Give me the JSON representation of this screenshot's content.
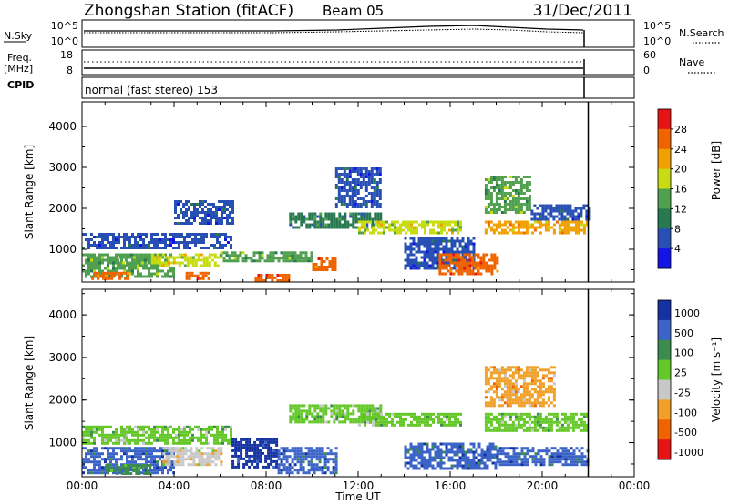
{
  "header": {
    "station": "Zhongshan Station (fitACF)",
    "beam": "Beam 05",
    "date": "31/Dec/2011"
  },
  "noise_panel": {
    "left_label": "N.Sky",
    "left_ticks": [
      "10^5",
      "10^0"
    ],
    "right_label": "N.Search",
    "right_ticks": [
      "10^5",
      "10^0"
    ]
  },
  "freq_panel": {
    "left_label_line1": "Freq.",
    "left_label_line2": "[MHz]",
    "left_ticks": [
      "18",
      "8"
    ],
    "right_label": "Nave",
    "right_ticks": [
      "60",
      "0"
    ]
  },
  "cpid": {
    "label": "CPID",
    "value": "normal (fast stereo) 153"
  },
  "x_axis": {
    "label": "Time UT",
    "tick_labels": [
      "00:00",
      "04:00",
      "08:00",
      "12:00",
      "16:00",
      "20:00",
      "00:00"
    ]
  },
  "colors": {
    "power_scale": [
      "#1414e6",
      "#2850b4",
      "#287850",
      "#50a050",
      "#c8dc14",
      "#f0a000",
      "#f06400",
      "#e61414"
    ],
    "velocity_scale": [
      "#1432a0",
      "#3c64c8",
      "#3c8c50",
      "#64c828",
      "#c8c8c8",
      "#f0a028",
      "#f06400",
      "#e61414"
    ]
  },
  "chart_data": [
    {
      "type": "heatmap",
      "panel": "power",
      "ylabel": "Slant Range [km]",
      "y_ticks": [
        "1000",
        "2000",
        "3000",
        "4000"
      ],
      "ylim": [
        200,
        4600
      ],
      "xlim_hours": [
        0,
        24
      ],
      "data_end_hour": 22,
      "colorbar": {
        "label": "Power [dB]",
        "tick_labels": [
          "4",
          "8",
          "12",
          "16",
          "20",
          "24",
          "28"
        ],
        "range": [
          0,
          30
        ]
      },
      "regions": [
        {
          "t0": 0.0,
          "t1": 6.5,
          "r0": 1000,
          "r1": 1400,
          "v": 6
        },
        {
          "t0": 0.0,
          "t1": 4.0,
          "r0": 300,
          "r1": 900,
          "v": 12
        },
        {
          "t0": 0.4,
          "t1": 2.0,
          "r0": 250,
          "r1": 450,
          "v": 26
        },
        {
          "t0": 1.5,
          "t1": 3.5,
          "r0": 600,
          "r1": 900,
          "v": 14
        },
        {
          "t0": 3.0,
          "t1": 6.0,
          "r0": 600,
          "r1": 900,
          "v": 17
        },
        {
          "t0": 4.5,
          "t1": 5.5,
          "r0": 300,
          "r1": 450,
          "v": 24
        },
        {
          "t0": 4.0,
          "t1": 6.5,
          "r0": 1600,
          "r1": 2200,
          "v": 6
        },
        {
          "t0": 6.0,
          "t1": 10.0,
          "r0": 700,
          "r1": 950,
          "v": 13
        },
        {
          "t0": 7.5,
          "t1": 9.0,
          "r0": 250,
          "r1": 400,
          "v": 25
        },
        {
          "t0": 10.0,
          "t1": 11.0,
          "r0": 500,
          "r1": 800,
          "v": 24
        },
        {
          "t0": 9.0,
          "t1": 13.0,
          "r0": 1500,
          "r1": 1900,
          "v": 11
        },
        {
          "t0": 12.0,
          "t1": 16.5,
          "r0": 1400,
          "r1": 1700,
          "v": 16
        },
        {
          "t0": 11.0,
          "t1": 13.0,
          "r0": 2000,
          "r1": 3000,
          "v": 4
        },
        {
          "t0": 14.0,
          "t1": 17.0,
          "r0": 500,
          "r1": 1300,
          "v": 7
        },
        {
          "t0": 15.5,
          "t1": 18.0,
          "r0": 400,
          "r1": 900,
          "v": 23
        },
        {
          "t0": 17.5,
          "t1": 19.5,
          "r0": 1900,
          "r1": 2800,
          "v": 14
        },
        {
          "t0": 17.5,
          "t1": 22.0,
          "r0": 1400,
          "r1": 1700,
          "v": 22
        },
        {
          "t0": 19.5,
          "t1": 22.0,
          "r0": 1700,
          "r1": 2100,
          "v": 6
        }
      ]
    },
    {
      "type": "heatmap",
      "panel": "velocity",
      "ylabel": "Slant Range [km]",
      "y_ticks": [
        "1000",
        "2000",
        "3000",
        "4000"
      ],
      "ylim": [
        200,
        4600
      ],
      "xlim_hours": [
        0,
        24
      ],
      "data_end_hour": 22,
      "colorbar": {
        "label": "Velocity [m s⁻¹]",
        "tick_labels": [
          "1000",
          "500",
          "100",
          "25",
          "-25",
          "-100",
          "-500",
          "-1000"
        ],
        "range": [
          -1000,
          1000
        ]
      },
      "regions": [
        {
          "t0": 0.0,
          "t1": 6.5,
          "r0": 1000,
          "r1": 1400,
          "v": 0
        },
        {
          "t0": 0.0,
          "t1": 4.0,
          "r0": 300,
          "r1": 900,
          "v": 150
        },
        {
          "t0": 1.0,
          "t1": 3.0,
          "r0": 300,
          "r1": 500,
          "v": 60
        },
        {
          "t0": 3.5,
          "t1": 6.0,
          "r0": 500,
          "r1": 900,
          "v": -100
        },
        {
          "t0": 6.5,
          "t1": 8.5,
          "r0": 400,
          "r1": 1100,
          "v": 600
        },
        {
          "t0": 8.5,
          "t1": 11.0,
          "r0": 300,
          "r1": 900,
          "v": 150
        },
        {
          "t0": 9.0,
          "t1": 13.0,
          "r0": 1500,
          "r1": 1900,
          "v": 0
        },
        {
          "t0": 12.0,
          "t1": 16.5,
          "r0": 1400,
          "r1": 1700,
          "v": 0
        },
        {
          "t0": 14.0,
          "t1": 18.0,
          "r0": 400,
          "r1": 1000,
          "v": 150
        },
        {
          "t0": 17.5,
          "t1": 20.5,
          "r0": 1900,
          "r1": 2800,
          "v": -150
        },
        {
          "t0": 17.5,
          "t1": 22.0,
          "r0": 1300,
          "r1": 1700,
          "v": 0
        },
        {
          "t0": 18.0,
          "t1": 22.0,
          "r0": 500,
          "r1": 900,
          "v": 150
        }
      ]
    }
  ]
}
